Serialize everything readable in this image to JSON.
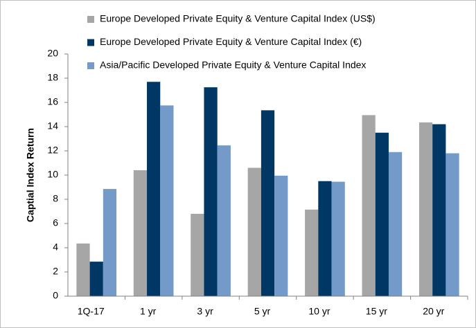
{
  "chart_data": {
    "type": "bar",
    "y_label": "Captial Index Return",
    "categories": [
      "1Q-17",
      "1 yr",
      "3 yr",
      "5 yr",
      "10 yr",
      "15 yr",
      "20 yr"
    ],
    "series": [
      {
        "name": "Europe Developed Private Equity & Venture Capital Index (US$)",
        "color": "#a6a6a6",
        "values": [
          4.35,
          10.4,
          6.8,
          10.6,
          7.15,
          14.95,
          14.35
        ]
      },
      {
        "name": "Europe Developed Private Equity & Venture Capital Index (€)",
        "color": "#003764",
        "values": [
          2.85,
          17.7,
          17.25,
          15.35,
          9.5,
          13.5,
          14.2
        ]
      },
      {
        "name": "Asia/Pacific Developed Private Equity & Venture Capital Index",
        "color": "#739ac8",
        "values": [
          8.85,
          15.75,
          12.45,
          9.95,
          9.45,
          11.9,
          11.8
        ]
      }
    ],
    "ylim": [
      0,
      20
    ],
    "yticks": [
      0,
      2,
      4,
      6,
      8,
      10,
      12,
      14,
      16,
      18,
      20
    ],
    "grid": false,
    "legend": "top-left"
  }
}
